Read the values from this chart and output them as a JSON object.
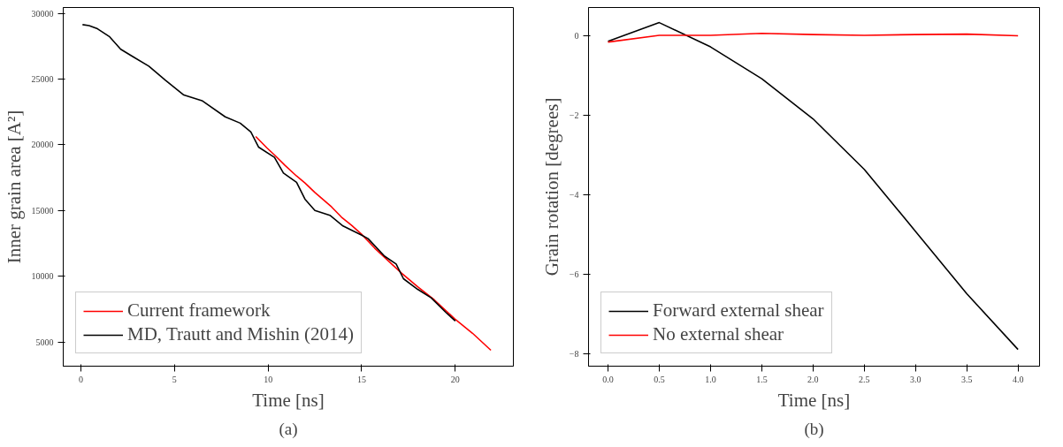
{
  "chart_data": [
    {
      "type": "line",
      "xlabel": "Time [ns]",
      "ylabel": "Inner grain area [A²]",
      "annotations": [
        "(a)"
      ],
      "xlim": [
        -0.94,
        23.1
      ],
      "ylim": [
        3170,
        30440
      ],
      "xticks": [
        0,
        5,
        10,
        15,
        20
      ],
      "yticks": [
        5000,
        10000,
        15000,
        20000,
        25000,
        30000
      ],
      "grid": false,
      "legend": "bottom left",
      "series": [
        {
          "name": "Current framework",
          "color": "#ff0000",
          "x": [
            9.34,
            9.93,
            10.37,
            10.9,
            11.52,
            11.97,
            12.5,
            13.39,
            13.92,
            14.45,
            14.98,
            15.69,
            16.4,
            17.11,
            17.99,
            18.88,
            19.95,
            20.92,
            21.9
          ],
          "values": [
            20630,
            19780,
            19190,
            18440,
            17630,
            17100,
            16380,
            15280,
            14500,
            13890,
            13220,
            12150,
            11210,
            10270,
            9200,
            8210,
            6790,
            5670,
            4380
          ]
        },
        {
          "name": "MD, Trautt and Mishin (2014)",
          "color": "#000000",
          "x": [
            0.09,
            0.44,
            0.89,
            1.54,
            2.13,
            2.75,
            3.63,
            4.52,
            5.5,
            6.47,
            7.71,
            8.51,
            9.08,
            9.49,
            10.34,
            10.82,
            11.52,
            11.97,
            12.5,
            13.3,
            14.0,
            14.98,
            15.34,
            16.22,
            16.84,
            17.23,
            17.99,
            18.71,
            19.5,
            20.0
          ],
          "values": [
            29140,
            29060,
            28820,
            28210,
            27270,
            26730,
            25980,
            24910,
            23790,
            23360,
            22130,
            21650,
            20980,
            19830,
            19050,
            17850,
            17150,
            15870,
            15010,
            14640,
            13830,
            13140,
            12870,
            11530,
            10940,
            9820,
            9010,
            8370,
            7250,
            6610
          ]
        }
      ]
    },
    {
      "type": "line",
      "xlabel": "Time [ns]",
      "ylabel": "Grain rotation [degrees]",
      "annotations": [
        "(b)"
      ],
      "xlim": [
        -0.19,
        4.21
      ],
      "ylim": [
        -8.32,
        0.7
      ],
      "xticks": [
        {
          "value": 0,
          "label": "0.0"
        },
        {
          "value": 0.5,
          "label": "0.5"
        },
        {
          "value": 1,
          "label": "1.0"
        },
        {
          "value": 1.5,
          "label": "1.5"
        },
        {
          "value": 2,
          "label": "2.0"
        },
        {
          "value": 2.5,
          "label": "2.5"
        },
        {
          "value": 3,
          "label": "3.0"
        },
        {
          "value": 3.5,
          "label": "3.5"
        },
        {
          "value": 4,
          "label": "4.0"
        }
      ],
      "yticks": [
        -8,
        -6,
        -4,
        -2,
        0
      ],
      "grid": false,
      "legend": "bottom left",
      "x": [
        0,
        0.5,
        1,
        1.5,
        2,
        2.5,
        3,
        3.5,
        4
      ],
      "series": [
        {
          "name": "Forward external shear",
          "color": "#000000",
          "values": [
            -0.15,
            0.32,
            -0.29,
            -1.09,
            -2.1,
            -3.37,
            -4.93,
            -6.5,
            -7.9
          ]
        },
        {
          "name": "No external shear",
          "color": "#ff0000",
          "values": [
            -0.17,
            0.0,
            0.0,
            0.05,
            0.02,
            0.0,
            0.02,
            0.03,
            -0.01
          ]
        }
      ]
    }
  ]
}
